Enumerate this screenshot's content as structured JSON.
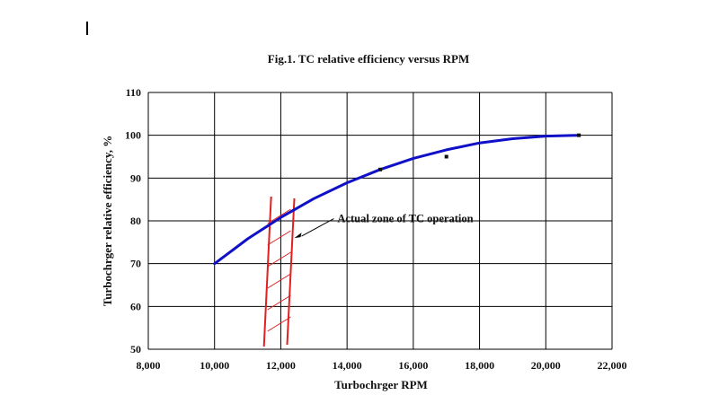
{
  "chart_data": {
    "type": "line",
    "title": "Fig.1. TC relative efficiency versus RPM",
    "xlabel": "Turbochrger RPM",
    "ylabel": "Turbochrger relative efficiency, %",
    "xlim": [
      8000,
      22000
    ],
    "ylim": [
      50,
      110
    ],
    "x_ticks": [
      "8,000",
      "10,000",
      "12,000",
      "14,000",
      "16,000",
      "18,000",
      "20,000",
      "22,000"
    ],
    "y_ticks": [
      "50",
      "60",
      "70",
      "80",
      "90",
      "100",
      "110"
    ],
    "grid": true,
    "series": [
      {
        "style": "fitted-curve",
        "color": "#1010c8",
        "x": [
          10000,
          11000,
          12000,
          13000,
          14000,
          15000,
          16000,
          17000,
          18000,
          19000,
          20000,
          21000
        ],
        "values": [
          70,
          75.8,
          80.8,
          85.2,
          88.9,
          92.0,
          94.6,
          96.6,
          98.2,
          99.2,
          99.8,
          100
        ]
      },
      {
        "style": "markers",
        "color": "#111111",
        "x": [
          15000,
          17000,
          21000
        ],
        "values": [
          92,
          95,
          100
        ]
      }
    ],
    "zone": {
      "label": "Actual zone of TC operation",
      "x_from": 11600,
      "x_to": 12300,
      "color": "#e02020"
    }
  }
}
